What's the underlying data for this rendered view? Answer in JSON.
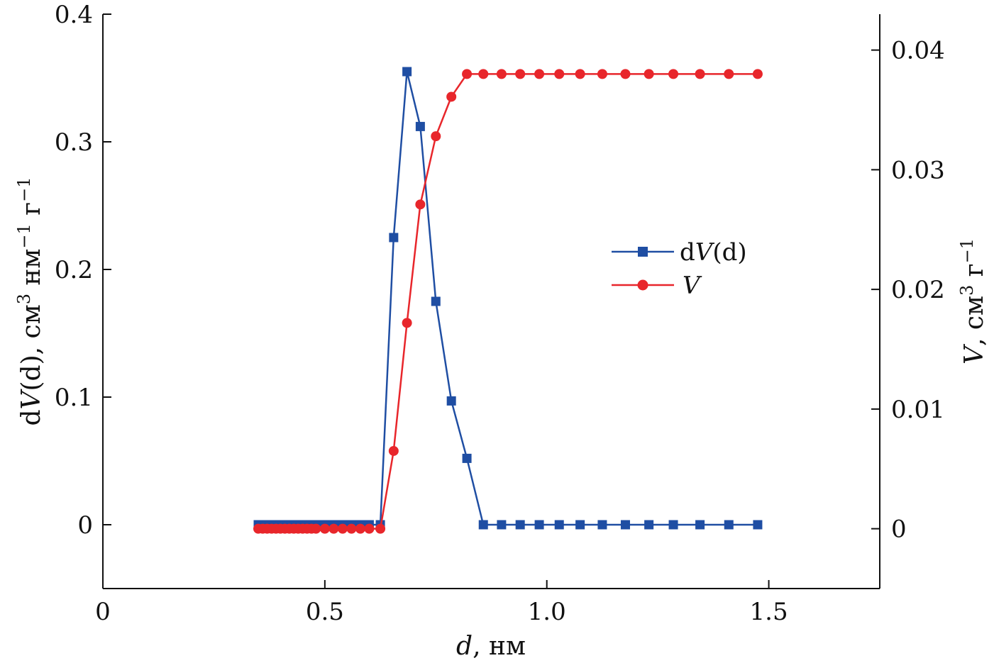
{
  "chart_data": {
    "type": "line",
    "x_axis": {
      "label_italic": "d",
      "label_rest": ", нм",
      "range": [
        0,
        1.75
      ],
      "ticks": [
        0,
        0.5,
        1.0,
        1.5
      ],
      "tick_labels": [
        "0",
        "0.5",
        "1.0",
        "1.5"
      ]
    },
    "y_axis_left": {
      "label_pre": "d",
      "label_italic": "V",
      "label_post": "(d), см",
      "label_sup1": "3",
      "label_mid": " нм",
      "label_sup2": "−1",
      "label_end": " г",
      "label_sup3": "−1",
      "range": [
        -0.05,
        0.4
      ],
      "ticks": [
        0,
        0.1,
        0.2,
        0.3,
        0.4
      ],
      "tick_labels": [
        "0",
        "0.1",
        "0.2",
        "0.3",
        "0.4"
      ]
    },
    "y_axis_right": {
      "label_italic": "V",
      "label_post": ", см",
      "label_sup1": "3",
      "label_end": " г",
      "label_sup2": "−1",
      "range": [
        -0.005,
        0.043
      ],
      "ticks": [
        0,
        0.01,
        0.02,
        0.03,
        0.04
      ],
      "tick_labels": [
        "0",
        "0.01",
        "0.02",
        "0.03",
        "0.04"
      ]
    },
    "legend": {
      "position": "right-center",
      "entries": [
        {
          "pre": "d",
          "italic": "V",
          "post": "(d)"
        },
        {
          "pre": "",
          "italic": "V",
          "post": ""
        }
      ]
    },
    "series": [
      {
        "color": "#1f4ea3",
        "marker": "square",
        "axis": "left",
        "x": [
          0.35,
          0.36,
          0.37,
          0.38,
          0.39,
          0.4,
          0.41,
          0.42,
          0.43,
          0.44,
          0.45,
          0.46,
          0.47,
          0.48,
          0.5,
          0.52,
          0.54,
          0.56,
          0.58,
          0.6,
          0.625,
          0.655,
          0.685,
          0.715,
          0.75,
          0.785,
          0.82,
          0.857,
          0.898,
          0.94,
          0.983,
          1.028,
          1.075,
          1.125,
          1.177,
          1.23,
          1.285,
          1.345,
          1.41,
          1.475
        ],
        "y": [
          0,
          0,
          0,
          0,
          0,
          0,
          0,
          0,
          0,
          0,
          0,
          0,
          0,
          0,
          0,
          0,
          0,
          0,
          0,
          0,
          0,
          0.225,
          0.355,
          0.312,
          0.175,
          0.097,
          0.052,
          0,
          0,
          0,
          0,
          0,
          0,
          0,
          0,
          0,
          0,
          0,
          0,
          0
        ]
      },
      {
        "color": "#e8262b",
        "marker": "circle",
        "axis": "right",
        "x": [
          0.35,
          0.36,
          0.37,
          0.38,
          0.39,
          0.4,
          0.41,
          0.42,
          0.43,
          0.44,
          0.45,
          0.46,
          0.47,
          0.48,
          0.5,
          0.52,
          0.54,
          0.56,
          0.58,
          0.6,
          0.625,
          0.655,
          0.685,
          0.715,
          0.75,
          0.785,
          0.82,
          0.857,
          0.898,
          0.94,
          0.983,
          1.028,
          1.075,
          1.125,
          1.177,
          1.23,
          1.285,
          1.345,
          1.41,
          1.475
        ],
        "y": [
          0,
          0,
          0,
          0,
          0,
          0,
          0,
          0,
          0,
          0,
          0,
          0,
          0,
          0,
          0,
          0,
          0,
          0,
          0,
          0,
          0,
          0.0065,
          0.0172,
          0.0271,
          0.0328,
          0.0361,
          0.038,
          0.038,
          0.038,
          0.038,
          0.038,
          0.038,
          0.038,
          0.038,
          0.038,
          0.038,
          0.038,
          0.038,
          0.038,
          0.038
        ]
      }
    ]
  }
}
